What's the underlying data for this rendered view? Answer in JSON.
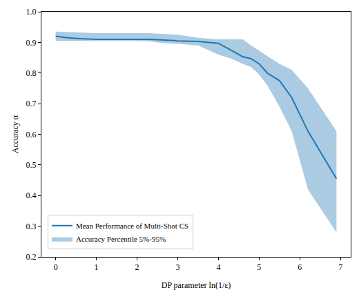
{
  "chart_data": {
    "type": "line",
    "x_label": "DP parameter ln(1/ε)",
    "y_label": "Accuracy α",
    "x": [
      0,
      0.3,
      0.6,
      1,
      1.5,
      2,
      2.3,
      2.6,
      3,
      3.5,
      4,
      4.3,
      4.6,
      4.8,
      5,
      5.2,
      5.5,
      5.8,
      6.2,
      6.9
    ],
    "series": [
      {
        "name": "Mean Performance of Multi-Shot CS",
        "color": "#1f77b4",
        "line_style": "solid",
        "values": [
          0.92,
          0.915,
          0.912,
          0.91,
          0.91,
          0.91,
          0.91,
          0.908,
          0.905,
          0.903,
          0.897,
          0.875,
          0.853,
          0.847,
          0.83,
          0.8,
          0.775,
          0.72,
          0.61,
          0.455
        ]
      },
      {
        "name": "Accuracy Percentile 5%-95%",
        "type": "band",
        "color": "#1f77b4",
        "lower": [
          0.905,
          0.905,
          0.905,
          0.905,
          0.905,
          0.905,
          0.903,
          0.898,
          0.895,
          0.89,
          0.86,
          0.848,
          0.83,
          0.82,
          0.795,
          0.76,
          0.69,
          0.61,
          0.42,
          0.28
        ],
        "upper": [
          0.935,
          0.933,
          0.932,
          0.93,
          0.93,
          0.93,
          0.93,
          0.928,
          0.925,
          0.915,
          0.91,
          0.91,
          0.91,
          0.89,
          0.872,
          0.855,
          0.83,
          0.81,
          0.75,
          0.61
        ]
      }
    ],
    "xlim": [
      -0.35,
      7.25
    ],
    "ylim": [
      0.2,
      1.0
    ],
    "xticks": [
      0,
      1,
      2,
      3,
      4,
      5,
      6,
      7
    ],
    "yticks": [
      0.2,
      0.3,
      0.4,
      0.5,
      0.6,
      0.7,
      0.8,
      0.9,
      {
        "value": 1.0,
        "label": "1.0"
      }
    ],
    "grid": false,
    "legend": "lower left"
  }
}
